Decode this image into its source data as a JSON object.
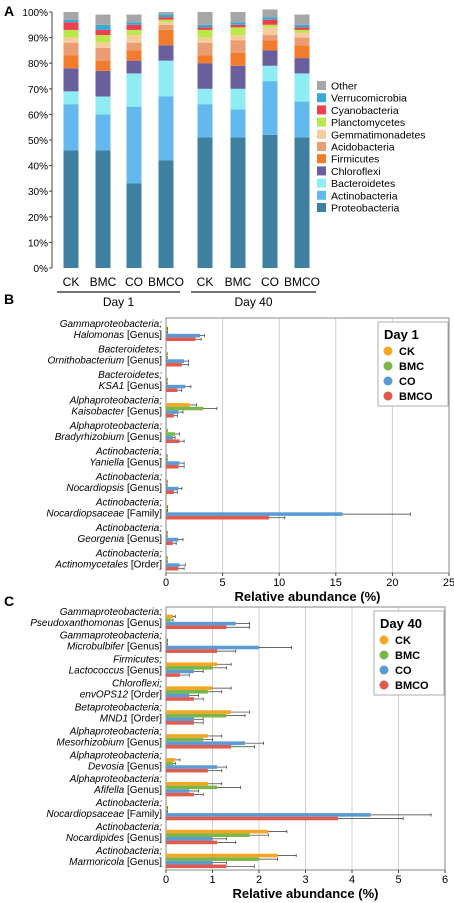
{
  "chart_data": [
    {
      "panel_label": "A",
      "type": "bar",
      "stacked": true,
      "yticks": [
        "0%",
        "10%",
        "20%",
        "30%",
        "40%",
        "50%",
        "60%",
        "70%",
        "80%",
        "90%",
        "100%"
      ],
      "categories": [
        "CK",
        "BMC",
        "CO",
        "BMCO",
        "CK",
        "BMC",
        "CO",
        "BMCO"
      ],
      "groups": [
        {
          "label": "Day 1",
          "span": [
            0,
            3
          ]
        },
        {
          "label": "Day 40",
          "span": [
            4,
            7
          ]
        }
      ],
      "series": [
        {
          "name": "Proteobacteria",
          "color": "#3f7f9f",
          "values": [
            46,
            46,
            33,
            42,
            51,
            51,
            52,
            51
          ]
        },
        {
          "name": "Actinobacteria",
          "color": "#63b8ee",
          "values": [
            18,
            14,
            30,
            25,
            13,
            11,
            21,
            14
          ]
        },
        {
          "name": "Bacteroidetes",
          "color": "#8eecf2",
          "values": [
            5,
            7,
            13,
            14,
            6,
            8,
            6,
            11
          ]
        },
        {
          "name": "Chloroflexi",
          "color": "#6a5e9c",
          "values": [
            9,
            10,
            5,
            6,
            10,
            9,
            6,
            6
          ]
        },
        {
          "name": "Firmicutes",
          "color": "#f27c2e",
          "values": [
            5,
            4,
            4,
            6,
            3,
            5,
            4,
            5
          ]
        },
        {
          "name": "Acidobacteria",
          "color": "#ea9d72",
          "values": [
            5,
            5,
            3,
            2,
            5,
            5,
            2,
            3
          ]
        },
        {
          "name": "Gemmatimonadetes",
          "color": "#f6cc9c",
          "values": [
            2,
            2,
            3,
            1,
            2,
            2,
            3,
            2
          ]
        },
        {
          "name": "Planctomycetes",
          "color": "#b9e84a",
          "values": [
            3,
            3,
            2,
            1,
            3,
            3,
            1,
            1
          ]
        },
        {
          "name": "Cyanobacteria",
          "color": "#ee3f4f",
          "values": [
            3,
            2,
            2,
            1,
            1,
            1,
            2,
            1
          ]
        },
        {
          "name": "Verrucomicrobia",
          "color": "#3aa8d4",
          "values": [
            1,
            2,
            1,
            1,
            1,
            1,
            1,
            1
          ]
        },
        {
          "name": "Other",
          "color": "#a6a6a6",
          "values": [
            3,
            4,
            3,
            1,
            5,
            4,
            3,
            4
          ]
        }
      ],
      "ylim": [
        0,
        100
      ]
    },
    {
      "panel_label": "B",
      "type": "bar",
      "orientation": "horizontal",
      "legend_title": "Day 1",
      "xlabel": "Relative abundance (%)",
      "xlim": [
        0,
        25
      ],
      "xticks": [
        "0",
        "5",
        "10",
        "15",
        "20",
        "25"
      ],
      "categories": [
        {
          "line1": "Gammaproteobacteria;",
          "line2_italic": "Halomonas",
          "line2_rank": " [Genus]"
        },
        {
          "line1": "Bacteroidetes;",
          "line2_italic": "Ornithobacterium",
          "line2_rank": " [Genus]"
        },
        {
          "line1": "Bacteroidetes;",
          "line2_italic": "KSA1",
          "line2_rank": " [Genus]"
        },
        {
          "line1": "Alphaproteobacteria;",
          "line2_italic": "Kaisobacter",
          "line2_rank": " [Genus]"
        },
        {
          "line1": "Alphaproteobacteria;",
          "line2_italic": "Bradyrhizobium",
          "line2_rank": " [Genus]"
        },
        {
          "line1": "Actinobacteria;",
          "line2_italic": "Yaniella",
          "line2_rank": " [Genus]"
        },
        {
          "line1": "Actinobacteria;",
          "line2_italic": "Nocardiopsis",
          "line2_rank": " [Genus]"
        },
        {
          "line1": "Actinobacteria;",
          "line2_italic": "Nocardiopsaceae",
          "line2_rank": " [Family]"
        },
        {
          "line1": "Actinobacteria;",
          "line2_italic": "Georgenia",
          "line2_rank": " [Genus]"
        },
        {
          "line1": "Actinobacteria;",
          "line2_italic": "Actinomycetales",
          "line2_rank": " [Order]"
        }
      ],
      "series": [
        {
          "name": "CK",
          "color": "#f5a623",
          "values": [
            0.1,
            0.05,
            0.05,
            2.1,
            0.05,
            0.05,
            0.05,
            0.1,
            0.05,
            0.05
          ],
          "errors": [
            0.05,
            0.05,
            0.05,
            0.6,
            0.05,
            0.05,
            0.05,
            0.05,
            0.05,
            0.05
          ]
        },
        {
          "name": "BMC",
          "color": "#7ab648",
          "values": [
            0.1,
            0.05,
            0.05,
            3.3,
            0.8,
            0.05,
            0.05,
            0.1,
            0.05,
            0.05
          ],
          "errors": [
            0.05,
            0.05,
            0.05,
            1.2,
            0.4,
            0.05,
            0.05,
            0.05,
            0.05,
            0.05
          ]
        },
        {
          "name": "CO",
          "color": "#5b9bd5",
          "values": [
            3.0,
            1.6,
            1.7,
            1.1,
            0.6,
            1.2,
            1.1,
            15.6,
            1.1,
            1.2
          ],
          "errors": [
            0.4,
            0.4,
            0.5,
            0.4,
            0.2,
            0.4,
            0.3,
            6.0,
            0.4,
            0.5
          ]
        },
        {
          "name": "BMCO",
          "color": "#e05a4e",
          "values": [
            2.6,
            1.4,
            1.0,
            0.7,
            1.2,
            1.1,
            0.7,
            9.1,
            0.6,
            1.1
          ],
          "errors": [
            0.5,
            0.6,
            0.4,
            0.3,
            0.4,
            0.5,
            0.3,
            1.4,
            0.3,
            0.5
          ]
        }
      ]
    },
    {
      "panel_label": "C",
      "type": "bar",
      "orientation": "horizontal",
      "legend_title": "Day 40",
      "xlabel": "Relative abundance (%)",
      "xlim": [
        0,
        6
      ],
      "xticks": [
        "0",
        "1",
        "2",
        "3",
        "4",
        "5",
        "6"
      ],
      "categories": [
        {
          "line1": "Gammaproteobacteria;",
          "line2_italic": "Pseudoxanthomonas",
          "line2_rank": " [Genus]"
        },
        {
          "line1": "Gammaproteobacteria;",
          "line2_italic": "Microbulbifer",
          "line2_rank": " [Genus]"
        },
        {
          "line1": "Firmicutes;",
          "line2_italic": "Lactococcus",
          "line2_rank": " [Genus]"
        },
        {
          "line1": "Chloroflexi;",
          "line2_italic": "envOPS12",
          "line2_rank": " [Order]"
        },
        {
          "line1": "Betaproteobacteria;",
          "line2_italic": "MND1",
          "line2_rank": " [Order]"
        },
        {
          "line1": "Alphaproteobacteria;",
          "line2_italic": "Mesorhizobium",
          "line2_rank": " [Genus]"
        },
        {
          "line1": "Alphaproteobacteria;",
          "line2_italic": "Devosia",
          "line2_rank": " [Genus]"
        },
        {
          "line1": "Alphaproteobacteria;",
          "line2_italic": "Afifella",
          "line2_rank": " [Genus]"
        },
        {
          "line1": "Actinobacteria;",
          "line2_italic": "Nocardiopsaceae",
          "line2_rank": " [Family]"
        },
        {
          "line1": "Actinobacteria;",
          "line2_italic": "Nocardipides",
          "line2_rank": " [Genus]"
        },
        {
          "line1": "Actinobacteria;",
          "line2_italic": "Marmoricola",
          "line2_rank": " [Genus]"
        }
      ],
      "series": [
        {
          "name": "CK",
          "color": "#f5a623",
          "values": [
            0.15,
            0.02,
            1.1,
            1.0,
            1.4,
            0.9,
            0.2,
            0.9,
            0.02,
            2.2,
            2.4
          ],
          "errors": [
            0.05,
            0.01,
            0.3,
            0.4,
            0.4,
            0.3,
            0.1,
            0.3,
            0.01,
            0.4,
            0.4
          ]
        },
        {
          "name": "BMC",
          "color": "#7ab648",
          "values": [
            0.1,
            0.02,
            1.0,
            0.9,
            1.3,
            0.8,
            0.15,
            1.1,
            0.02,
            1.8,
            2.0
          ],
          "errors": [
            0.05,
            0.01,
            0.3,
            0.3,
            0.4,
            0.2,
            0.05,
            0.5,
            0.01,
            0.4,
            0.4
          ]
        },
        {
          "name": "CO",
          "color": "#5b9bd5",
          "values": [
            1.5,
            2.0,
            0.6,
            0.5,
            0.6,
            1.7,
            1.1,
            0.5,
            4.4,
            1.0,
            1.0
          ],
          "errors": [
            0.3,
            0.7,
            0.2,
            0.2,
            0.2,
            0.4,
            0.2,
            0.2,
            1.3,
            0.3,
            0.3
          ]
        },
        {
          "name": "BMCO",
          "color": "#e05a4e",
          "values": [
            1.3,
            1.1,
            0.3,
            0.6,
            0.6,
            1.4,
            0.9,
            0.6,
            3.7,
            1.1,
            1.3
          ],
          "errors": [
            0.5,
            0.4,
            0.2,
            0.2,
            0.2,
            0.5,
            0.3,
            0.2,
            1.4,
            0.4,
            0.6
          ]
        }
      ]
    }
  ]
}
